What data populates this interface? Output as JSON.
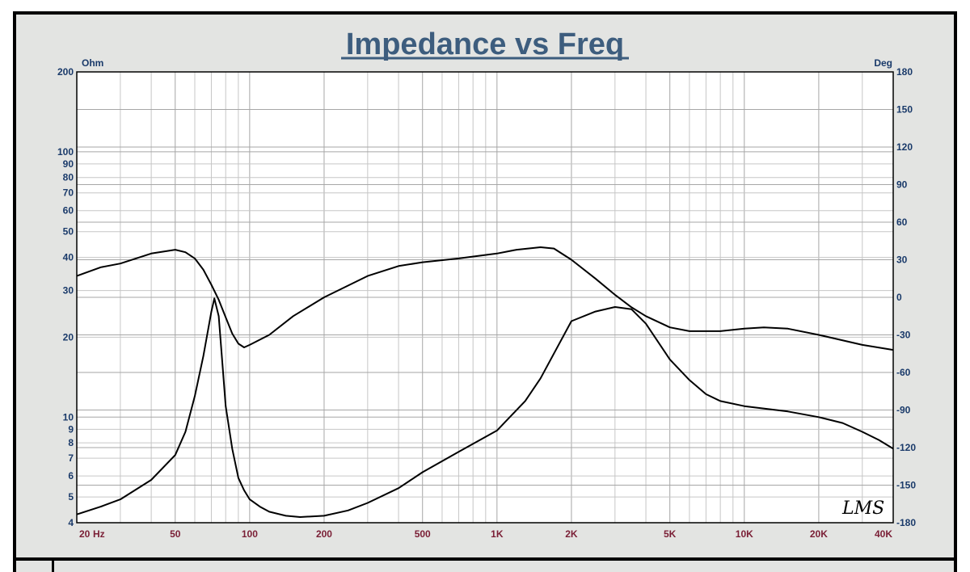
{
  "chart_data": {
    "type": "line",
    "title": "Impedance vs Freq",
    "y_unit_left": "Ohm",
    "y_unit_right": "Deg",
    "x_unit": "Hz",
    "x_scale": "log",
    "y_scale_left": "log",
    "xlim": [
      20,
      40000
    ],
    "ylim_left": [
      4,
      200
    ],
    "ylim_right": [
      -180,
      180
    ],
    "grid": true,
    "x_tick_labels": [
      {
        "v": 20,
        "label": "20"
      },
      {
        "v": 50,
        "label": "50"
      },
      {
        "v": 100,
        "label": "100"
      },
      {
        "v": 200,
        "label": "200"
      },
      {
        "v": 500,
        "label": "500"
      },
      {
        "v": 1000,
        "label": "1K"
      },
      {
        "v": 2000,
        "label": "2K"
      },
      {
        "v": 5000,
        "label": "5K"
      },
      {
        "v": 10000,
        "label": "10K"
      },
      {
        "v": 20000,
        "label": "20K"
      },
      {
        "v": 40000,
        "label": "40K"
      }
    ],
    "y_left_tick_labels": [
      {
        "v": 4,
        "label": "4"
      },
      {
        "v": 5,
        "label": "5"
      },
      {
        "v": 6,
        "label": "6"
      },
      {
        "v": 7,
        "label": "7"
      },
      {
        "v": 8,
        "label": "8"
      },
      {
        "v": 9,
        "label": "9"
      },
      {
        "v": 10,
        "label": "10"
      },
      {
        "v": 20,
        "label": "20"
      },
      {
        "v": 30,
        "label": "30"
      },
      {
        "v": 40,
        "label": "40"
      },
      {
        "v": 50,
        "label": "50"
      },
      {
        "v": 60,
        "label": "60"
      },
      {
        "v": 70,
        "label": "70"
      },
      {
        "v": 80,
        "label": "80"
      },
      {
        "v": 90,
        "label": "90"
      },
      {
        "v": 100,
        "label": "100"
      },
      {
        "v": 200,
        "label": "200"
      }
    ],
    "y_right_tick_labels": [
      {
        "v": 180,
        "label": "180"
      },
      {
        "v": 150,
        "label": "150"
      },
      {
        "v": 120,
        "label": "120"
      },
      {
        "v": 90,
        "label": "90"
      },
      {
        "v": 60,
        "label": "60"
      },
      {
        "v": 30,
        "label": "30"
      },
      {
        "v": 0,
        "label": "0"
      },
      {
        "v": -30,
        "label": "-30"
      },
      {
        "v": -60,
        "label": "-60"
      },
      {
        "v": -90,
        "label": "-90"
      },
      {
        "v": -120,
        "label": "-120"
      },
      {
        "v": -150,
        "label": "-150"
      },
      {
        "v": -180,
        "label": "-180"
      }
    ],
    "series": [
      {
        "axis": "left",
        "x": [
          20,
          25,
          30,
          40,
          50,
          55,
          60,
          65,
          70,
          72,
          75,
          78,
          80,
          85,
          90,
          95,
          100,
          110,
          120,
          140,
          160,
          200,
          250,
          300,
          400,
          500,
          700,
          1000,
          1300,
          1500,
          2000,
          2500,
          3000,
          3500,
          4000,
          5000,
          6000,
          7000,
          8000,
          10000,
          15000,
          20000,
          25000,
          30000,
          35000,
          40000
        ],
        "y": [
          4.3,
          4.6,
          4.9,
          5.8,
          7.2,
          8.8,
          12,
          17,
          25,
          28,
          24,
          15,
          11,
          7.6,
          5.9,
          5.3,
          4.9,
          4.6,
          4.4,
          4.25,
          4.2,
          4.25,
          4.45,
          4.75,
          5.4,
          6.2,
          7.4,
          8.9,
          11.5,
          14,
          23,
          25,
          26,
          25.5,
          22.5,
          16.5,
          13.8,
          12.2,
          11.5,
          11,
          10.5,
          10,
          9.5,
          8.8,
          8.2,
          7.6
        ]
      },
      {
        "axis": "right",
        "x": [
          20,
          25,
          30,
          40,
          50,
          55,
          60,
          65,
          70,
          75,
          80,
          85,
          90,
          95,
          100,
          120,
          150,
          200,
          300,
          400,
          500,
          700,
          1000,
          1200,
          1500,
          1700,
          2000,
          2500,
          3000,
          3500,
          4000,
          5000,
          6000,
          8000,
          10000,
          12000,
          15000,
          20000,
          30000,
          40000
        ],
        "y": [
          17,
          24,
          27,
          35,
          38,
          36,
          31,
          22,
          10,
          -2,
          -16,
          -29,
          -37,
          -40,
          -38,
          -30,
          -15,
          0,
          17,
          25,
          28,
          31,
          35,
          38,
          40,
          39,
          30,
          15,
          2,
          -8,
          -15,
          -24,
          -27,
          -27,
          -25,
          -24,
          -25,
          -30,
          -38,
          -42
        ]
      }
    ]
  },
  "signature": "LMS"
}
